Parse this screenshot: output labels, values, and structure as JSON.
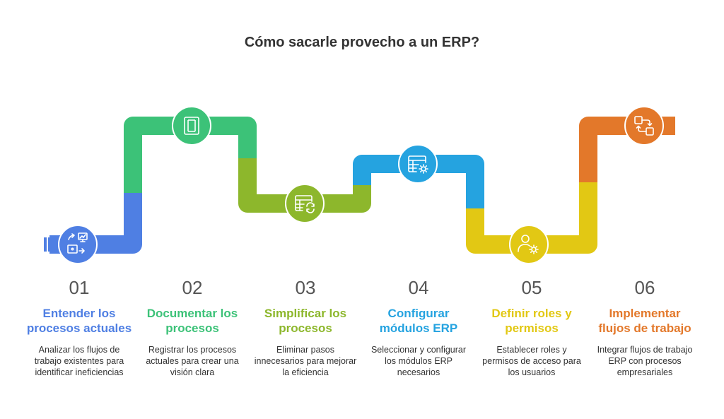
{
  "title": "Cómo sacarle provecho a un ERP?",
  "steps": [
    {
      "number": "01",
      "title": "Entender los procesos actuales",
      "description": "Analizar los flujos de trabajo existentes para identificar ineficiencias",
      "color": "#4f7fe3",
      "icon": "workflow-analysis-icon"
    },
    {
      "number": "02",
      "title": "Documentar los procesos",
      "description": "Registrar los procesos actuales para crear una visión clara",
      "color": "#3cc278",
      "icon": "document-pages-icon"
    },
    {
      "number": "03",
      "title": "Simplificar los procesos",
      "description": "Eliminar pasos innecesarios para mejorar la eficiencia",
      "color": "#8db72c",
      "icon": "table-refresh-icon"
    },
    {
      "number": "04",
      "title": "Configurar módulos ERP",
      "description": "Seleccionar y configurar los módulos ERP necesarios",
      "color": "#25a3e0",
      "icon": "table-settings-icon"
    },
    {
      "number": "05",
      "title": "Definir roles y permisos",
      "description": "Establecer roles y permisos de acceso para los usuarios",
      "color": "#e2c814",
      "icon": "user-settings-icon"
    },
    {
      "number": "06",
      "title": "Implementar flujos de trabajo",
      "description": "Integrar flujos de trabajo ERP con procesos empresariales",
      "color": "#e3782a",
      "icon": "flow-connect-icon"
    }
  ]
}
